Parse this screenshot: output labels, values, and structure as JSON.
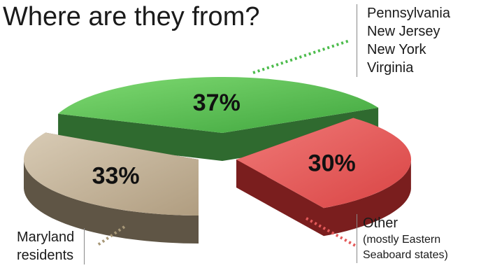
{
  "title": "Where are they from?",
  "chart_data": {
    "type": "pie",
    "title": "Where are they from?",
    "slices": [
      {
        "key": "green",
        "value": 37,
        "label": "37%",
        "color": "#4cbc4c",
        "side_color": "#2f6a2f"
      },
      {
        "key": "red",
        "value": 30,
        "label": "30%",
        "color": "#e45a5a",
        "side_color": "#7a1e1e"
      },
      {
        "key": "tan",
        "value": 33,
        "label": "33%",
        "color": "#c4b298",
        "side_color": "#5f5545"
      }
    ]
  },
  "callouts": {
    "green": {
      "lines": [
        "Pennsylvania",
        "New Jersey",
        "New York",
        "Virginia"
      ]
    },
    "red": {
      "line1": "Other",
      "line2": "(mostly Eastern",
      "line3": "Seaboard states)"
    },
    "tan": {
      "line1": "Maryland",
      "line2": "residents"
    }
  }
}
